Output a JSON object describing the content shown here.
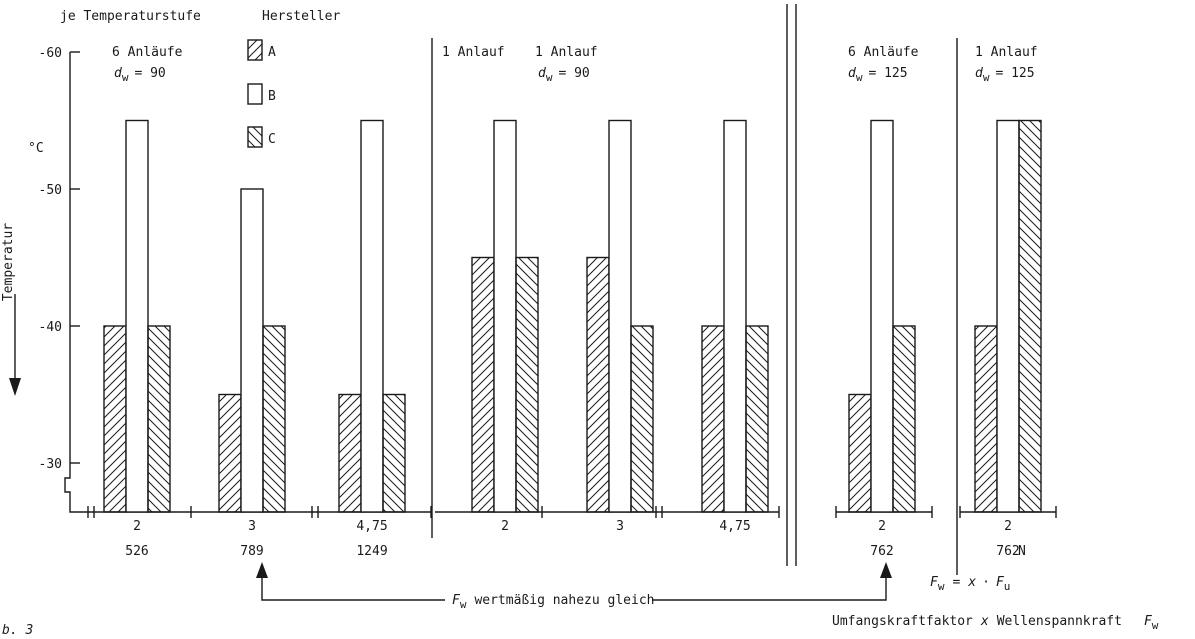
{
  "chart_data": {
    "type": "bar",
    "title": "",
    "ylabel": "Temperatur",
    "yunit": "°C",
    "ylim": [
      -28,
      -61
    ],
    "yticks": [
      -60,
      -50,
      -40,
      -30
    ],
    "legend_title_left": "je Temperaturstufe",
    "legend_title": "Hersteller",
    "legend_placement": "top-left",
    "series": [
      {
        "name": "A",
        "pattern": "hatch-forward"
      },
      {
        "name": "B",
        "pattern": "empty"
      },
      {
        "name": "C",
        "pattern": "hatch-backward"
      }
    ],
    "panels": [
      {
        "header": "6 Anläufe",
        "dw_label": "d",
        "dw_sub": "w",
        "dw_value": "= 90"
      },
      {
        "header": "1 Anlauf",
        "dw_label": "",
        "dw_sub": "",
        "dw_value": ""
      },
      {
        "header": "1 Anlauf",
        "dw_label": "d",
        "dw_sub": "w",
        "dw_value": "= 90"
      },
      {
        "header": "6 Anläufe",
        "dw_label": "d",
        "dw_sub": "w",
        "dw_value": "= 125"
      },
      {
        "header": "1 Anlauf",
        "dw_label": "d",
        "dw_sub": "w",
        "dw_value": "= 125"
      }
    ],
    "groups": [
      {
        "x_label": "2",
        "fw_label": "526",
        "values": [
          -40,
          -55,
          -40
        ]
      },
      {
        "x_label": "3",
        "fw_label": "789",
        "values": [
          -35,
          -50,
          -40
        ]
      },
      {
        "x_label": "4,75",
        "fw_label": "1249",
        "values": [
          -35,
          -55,
          -35
        ]
      },
      {
        "x_label": "2",
        "fw_label": "",
        "values": [
          -45,
          -55,
          -45
        ]
      },
      {
        "x_label": "3",
        "fw_label": "",
        "values": [
          -45,
          -55,
          -40
        ]
      },
      {
        "x_label": "4,75",
        "fw_label": "",
        "values": [
          -40,
          -55,
          -40
        ]
      },
      {
        "x_label": "2",
        "fw_label": "762",
        "values": [
          -35,
          -55,
          -40
        ]
      },
      {
        "x_label": "2",
        "fw_label": "762",
        "values": [
          -40,
          -55,
          -55
        ]
      }
    ],
    "unit_n": "N",
    "annotation": {
      "symbol": "F",
      "sub": "w",
      "text": "wertmäßig nahezu gleich"
    },
    "formula": {
      "lhs": "F",
      "lhs_sub": "w",
      "eq": "=",
      "x": "x",
      "dot": "·",
      "rhs": "F",
      "rhs_sub": "u"
    },
    "footer": {
      "part1": "Umfangskraftfaktor",
      "x": "x",
      "part2": "Wellenspannkraft",
      "sym": "F",
      "sym_sub": "w"
    },
    "corner_text": "b. 3"
  }
}
